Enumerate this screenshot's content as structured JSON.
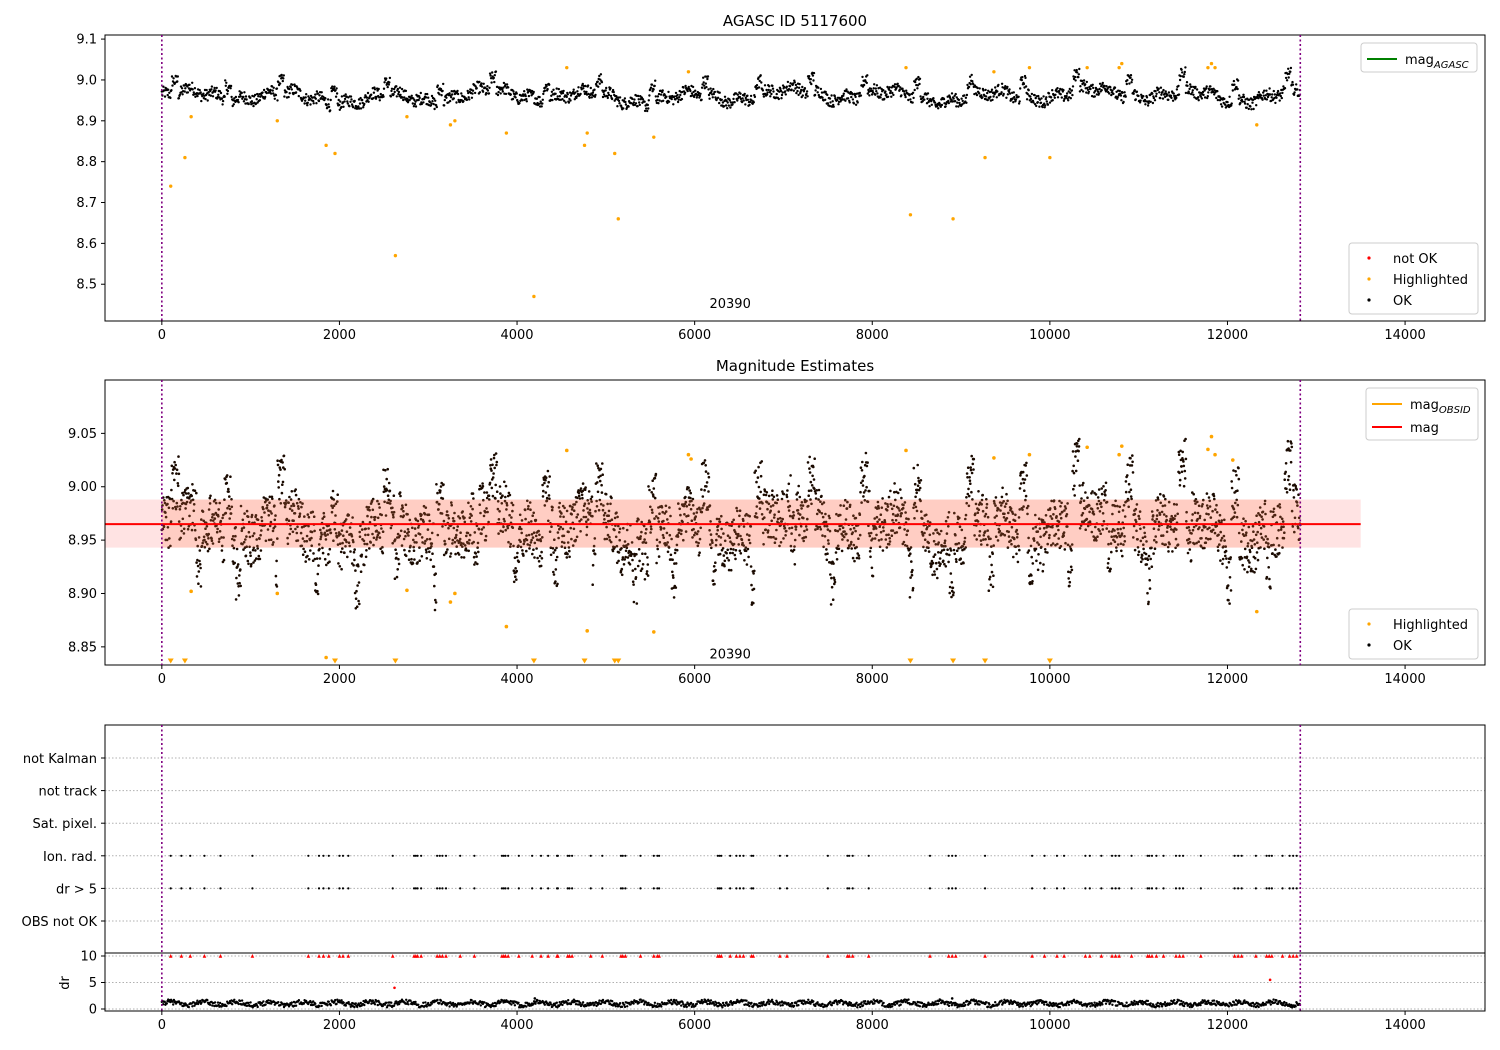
{
  "chart_data": [
    {
      "type": "scatter",
      "title": "AGASC ID 5117600",
      "xlim": [
        -640,
        14900
      ],
      "ylim": [
        8.41,
        9.11
      ],
      "xticks": [
        0,
        2000,
        4000,
        6000,
        8000,
        10000,
        12000,
        14000
      ],
      "yticks": [
        8.5,
        8.6,
        8.7,
        8.8,
        8.9,
        9.0,
        9.1
      ],
      "vlines": [
        0,
        12820
      ],
      "annotation": {
        "text": "20390",
        "x": 6400,
        "y": 8.43
      },
      "legend_lines": [
        {
          "label": "mag",
          "subscript": "AGASC",
          "color": "#008000"
        }
      ],
      "legend_points": [
        {
          "label": "not OK",
          "color": "#ff0000"
        },
        {
          "label": "Highlighted",
          "color": "#ffa500"
        },
        {
          "label": "OK",
          "color": "#000000"
        }
      ],
      "highlighted": [
        [
          100,
          8.74
        ],
        [
          260,
          8.81
        ],
        [
          330,
          8.91
        ],
        [
          1300,
          8.9
        ],
        [
          1850,
          8.84
        ],
        [
          1950,
          8.82
        ],
        [
          2630,
          8.57
        ],
        [
          2760,
          8.91
        ],
        [
          3250,
          8.89
        ],
        [
          3300,
          8.9
        ],
        [
          3880,
          8.87
        ],
        [
          4190,
          8.47
        ],
        [
          4560,
          9.03
        ],
        [
          4760,
          8.84
        ],
        [
          4790,
          8.87
        ],
        [
          5100,
          8.82
        ],
        [
          5140,
          8.66
        ],
        [
          5540,
          8.86
        ],
        [
          5930,
          9.02
        ],
        [
          8380,
          9.03
        ],
        [
          8430,
          8.67
        ],
        [
          8910,
          8.66
        ],
        [
          9270,
          8.81
        ],
        [
          9370,
          9.02
        ],
        [
          9770,
          9.03
        ],
        [
          10000,
          8.81
        ],
        [
          10420,
          9.03
        ],
        [
          10780,
          9.03
        ],
        [
          10810,
          9.04
        ],
        [
          11780,
          9.03
        ],
        [
          11820,
          9.04
        ],
        [
          11860,
          9.03
        ],
        [
          12330,
          8.89
        ]
      ]
    },
    {
      "type": "scatter",
      "title": "Magnitude Estimates",
      "xlim": [
        -640,
        14900
      ],
      "ylim": [
        8.833,
        9.1
      ],
      "xticks": [
        0,
        2000,
        4000,
        6000,
        8000,
        10000,
        12000,
        14000
      ],
      "yticks": [
        8.85,
        8.9,
        8.95,
        9.0,
        9.05
      ],
      "vlines": [
        0,
        12820
      ],
      "mag": 8.965,
      "mag_band": [
        8.943,
        8.988
      ],
      "band_x": [
        -640,
        13500
      ],
      "annotation": {
        "text": "20390",
        "x": 6400,
        "y": 8.838
      },
      "legend_lines": [
        {
          "label": "mag",
          "subscript": "OBSID",
          "color": "#ffa500"
        },
        {
          "label": "mag",
          "subscript": "",
          "color": "#ff0000"
        }
      ],
      "legend_points": [
        {
          "label": "Highlighted",
          "color": "#ffa500"
        },
        {
          "label": "OK",
          "color": "#000000"
        }
      ],
      "highlighted": [
        [
          330,
          8.902
        ],
        [
          1300,
          8.9
        ],
        [
          1850,
          8.84
        ],
        [
          2760,
          8.903
        ],
        [
          3250,
          8.892
        ],
        [
          3300,
          8.9
        ],
        [
          3880,
          8.869
        ],
        [
          4560,
          9.034
        ],
        [
          4790,
          8.865
        ],
        [
          5540,
          8.864
        ],
        [
          5930,
          9.03
        ],
        [
          5960,
          9.026
        ],
        [
          8380,
          9.034
        ],
        [
          9370,
          9.027
        ],
        [
          9770,
          9.03
        ],
        [
          10420,
          9.037
        ],
        [
          10780,
          9.03
        ],
        [
          10810,
          9.038
        ],
        [
          11780,
          9.035
        ],
        [
          11820,
          9.047
        ],
        [
          11860,
          9.03
        ],
        [
          12060,
          9.025
        ],
        [
          12330,
          8.883
        ]
      ],
      "triangles": [
        100,
        260,
        1950,
        2630,
        4190,
        4760,
        5100,
        5140,
        8430,
        8910,
        9270,
        10000
      ]
    },
    {
      "type": "scatter",
      "title": "",
      "xlim": [
        -640,
        14900
      ],
      "xticks": [
        0,
        2000,
        4000,
        6000,
        8000,
        10000,
        12000,
        14000
      ],
      "vlines": [
        0,
        12820
      ],
      "flag_labels": [
        "not Kalman",
        "not track",
        "Sat. pixel.",
        "Ion. rad.",
        "dr > 5",
        "OBS not OK"
      ],
      "flag_x": [
        100,
        220,
        320,
        480,
        660,
        1020,
        1650,
        1770,
        1820,
        1880,
        2000,
        2040,
        2100,
        2600,
        2840,
        2860,
        2880,
        2920,
        3100,
        3130,
        3160,
        3200,
        3360,
        3520,
        3830,
        3850,
        3870,
        3900,
        4020,
        4170,
        4270,
        4350,
        4450,
        4460,
        4570,
        4590,
        4620,
        4830,
        4960,
        5170,
        5190,
        5220,
        5390,
        5540,
        5580,
        5600,
        6260,
        6280,
        6300,
        6400,
        6470,
        6510,
        6550,
        6640,
        6660,
        6960,
        7040,
        7500,
        7720,
        7740,
        7780,
        7960,
        8650,
        8860,
        8900,
        8940,
        9270,
        9800,
        9940,
        10080,
        10160,
        10400,
        10450,
        10580,
        10700,
        10740,
        10780,
        10920,
        11100,
        11120,
        11150,
        11200,
        11280,
        11420,
        11460,
        11500,
        11700,
        12080,
        12120,
        12160,
        12320,
        12440,
        12470,
        12500,
        12620,
        12700,
        12740,
        12780
      ],
      "dr_yticks": [
        0,
        5,
        10
      ],
      "dr_ylabel": "dr",
      "dr_outliers": [
        [
          2620,
          4
        ],
        [
          4200,
          2
        ],
        [
          12480,
          5.5
        ],
        [
          8900,
          2
        ]
      ]
    }
  ]
}
